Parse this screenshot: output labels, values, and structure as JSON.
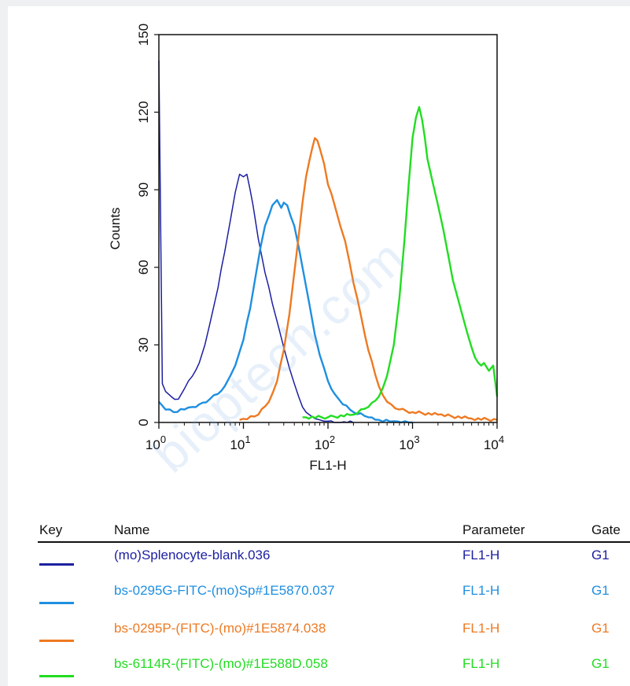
{
  "chart_data": {
    "type": "line",
    "xlabel": "FL1-H",
    "ylabel": "Counts",
    "x_scale": "log",
    "xlim": [
      1,
      10000
    ],
    "ylim": [
      0,
      150
    ],
    "x_ticks": [
      {
        "base": "10",
        "exp": "0"
      },
      {
        "base": "10",
        "exp": "1"
      },
      {
        "base": "10",
        "exp": "2"
      },
      {
        "base": "10",
        "exp": "3"
      },
      {
        "base": "10",
        "exp": "4"
      }
    ],
    "y_ticks": [
      "0",
      "30",
      "60",
      "90",
      "120",
      "150"
    ],
    "y_tick_values": [
      0,
      30,
      60,
      90,
      120,
      150
    ],
    "series": [
      {
        "name": "(mo)Splenocyte-blank.036",
        "color": "#1c1fa0",
        "x": [
          1,
          1.05,
          1.1,
          1.2,
          1.4,
          1.7,
          2,
          2.5,
          3,
          3.5,
          4,
          5,
          6,
          7,
          8,
          9,
          10,
          11,
          12,
          13,
          15,
          18,
          22,
          26,
          30,
          35,
          40,
          45,
          50,
          55,
          60,
          70,
          80,
          100,
          130,
          200
        ],
        "y": [
          140,
          75,
          15,
          12,
          10,
          9,
          13,
          18,
          23,
          30,
          38,
          52,
          66,
          78,
          89,
          96,
          95,
          96,
          90,
          84,
          71,
          58,
          46,
          37,
          29,
          21,
          15,
          10,
          6,
          4,
          3,
          1.5,
          1,
          0.5,
          0,
          0
        ]
      },
      {
        "name": "bs-0295G-FITC-(mo)Sp#1E5870.037",
        "color": "#1f8fe0",
        "x": [
          1,
          1.2,
          1.5,
          2,
          2.5,
          3,
          4,
          5,
          6,
          7,
          8,
          10,
          12,
          14,
          16,
          18,
          20,
          22,
          25,
          28,
          30,
          33,
          36,
          40,
          45,
          50,
          60,
          70,
          80,
          100,
          120,
          150,
          200,
          300,
          400,
          600,
          1000
        ],
        "y": [
          8,
          5,
          4,
          5,
          6,
          7,
          9,
          11,
          14,
          18,
          22,
          32,
          44,
          57,
          68,
          76,
          80,
          84,
          86,
          83,
          85,
          84,
          80,
          76,
          68,
          60,
          46,
          34,
          26,
          16,
          11,
          7,
          4,
          2,
          1,
          0.5,
          0
        ]
      },
      {
        "name": "bs-0295P-(FITC)-(mo)#1E5874.038",
        "color": "#ee7a22",
        "x": [
          9,
          15,
          20,
          25,
          30,
          35,
          40,
          45,
          50,
          55,
          60,
          65,
          70,
          75,
          80,
          90,
          100,
          120,
          140,
          160,
          180,
          200,
          250,
          300,
          400,
          500,
          700,
          1000,
          2000,
          5000,
          10000
        ],
        "y": [
          1,
          3,
          8,
          16,
          28,
          42,
          58,
          72,
          85,
          95,
          101,
          106,
          110,
          109,
          106,
          100,
          92,
          84,
          76,
          70,
          62,
          54,
          40,
          28,
          14,
          8,
          5,
          4,
          3,
          1.5,
          1
        ]
      },
      {
        "name": "bs-6114R-(FITC)-(mo)#1E588D.058",
        "color": "#22dd22",
        "x": [
          50,
          100,
          200,
          300,
          400,
          500,
          600,
          700,
          800,
          900,
          1000,
          1100,
          1200,
          1300,
          1400,
          1500,
          1700,
          2000,
          2300,
          2700,
          3000,
          3500,
          4000,
          4500,
          5000,
          5500,
          6000,
          6500,
          7000,
          8000,
          9000,
          10000
        ],
        "y": [
          2,
          2,
          3,
          6,
          10,
          18,
          30,
          48,
          70,
          92,
          110,
          118,
          122,
          117,
          110,
          102,
          94,
          84,
          75,
          63,
          55,
          47,
          40,
          34,
          29,
          25,
          23,
          22,
          23,
          20,
          22,
          10
        ]
      }
    ]
  },
  "legend": {
    "headers": {
      "key": "Key",
      "name": "Name",
      "parameter": "Parameter",
      "gate": "Gate"
    },
    "rows": [
      {
        "name": "(mo)Splenocyte-blank.036",
        "parameter": "FL1-H",
        "gate": "G1",
        "color": "#1c1fa0"
      },
      {
        "name": "bs-0295G-FITC-(mo)Sp#1E5870.037",
        "parameter": "FL1-H",
        "gate": "G1",
        "color": "#1f8fe0"
      },
      {
        "name": "bs-0295P-(FITC)-(mo)#1E5874.038",
        "parameter": "FL1-H",
        "gate": "G1",
        "color": "#ee7a22"
      },
      {
        "name": "bs-6114R-(FITC)-(mo)#1E588D.058",
        "parameter": "FL1-H",
        "gate": "G1",
        "color": "#22dd22"
      }
    ]
  },
  "watermark": {
    "text": "bioptech.com"
  }
}
